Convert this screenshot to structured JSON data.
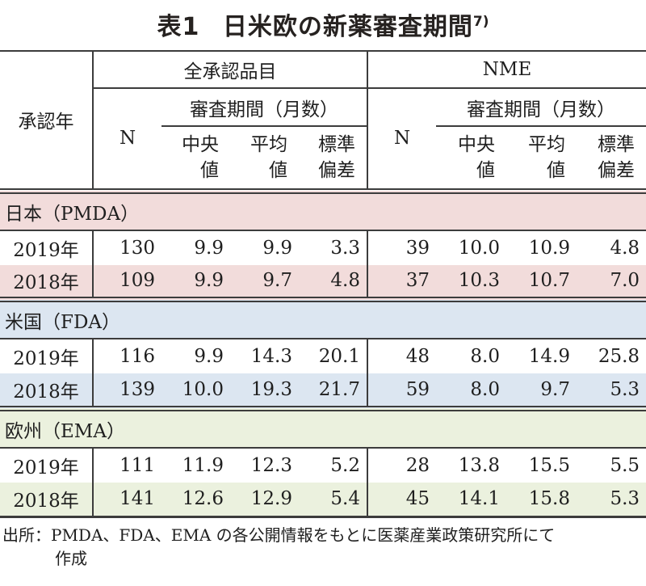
{
  "title": {
    "label": "表1",
    "text": "日米欧の新薬審査期間",
    "superscript": "7)"
  },
  "table": {
    "header": {
      "approval_year": "承認年",
      "group_all": "全承認品目",
      "group_nme": "NME",
      "n": "N",
      "review_period": "審査期間（月数）",
      "median_line1": "中央",
      "median_line2": "値",
      "mean_line1": "平均",
      "mean_line2": "値",
      "sd_line1": "標準",
      "sd_line2": "偏差"
    },
    "sections": [
      {
        "name": "日本（PMDA）",
        "color": "#f2dcdb",
        "rows": [
          {
            "year": "2019年",
            "all": {
              "n": "130",
              "median": "9.9",
              "mean": "9.9",
              "sd": "3.3"
            },
            "nme": {
              "n": "39",
              "median": "10.0",
              "mean": "10.9",
              "sd": "4.8"
            }
          },
          {
            "year": "2018年",
            "all": {
              "n": "109",
              "median": "9.9",
              "mean": "9.7",
              "sd": "4.8"
            },
            "nme": {
              "n": "37",
              "median": "10.3",
              "mean": "10.7",
              "sd": "7.0"
            }
          }
        ]
      },
      {
        "name": "米国（FDA）",
        "color": "#dce6f1",
        "rows": [
          {
            "year": "2019年",
            "all": {
              "n": "116",
              "median": "9.9",
              "mean": "14.3",
              "sd": "20.1"
            },
            "nme": {
              "n": "48",
              "median": "8.0",
              "mean": "14.9",
              "sd": "25.8"
            }
          },
          {
            "year": "2018年",
            "all": {
              "n": "139",
              "median": "10.0",
              "mean": "19.3",
              "sd": "21.7"
            },
            "nme": {
              "n": "59",
              "median": "8.0",
              "mean": "9.7",
              "sd": "5.3"
            }
          }
        ]
      },
      {
        "name": "欧州（EMA）",
        "color": "#ebf1de",
        "rows": [
          {
            "year": "2019年",
            "all": {
              "n": "111",
              "median": "11.9",
              "mean": "12.3",
              "sd": "5.2"
            },
            "nme": {
              "n": "28",
              "median": "13.8",
              "mean": "15.5",
              "sd": "5.5"
            }
          },
          {
            "year": "2018年",
            "all": {
              "n": "141",
              "median": "12.6",
              "mean": "12.9",
              "sd": "5.4"
            },
            "nme": {
              "n": "45",
              "median": "14.1",
              "mean": "15.8",
              "sd": "5.3"
            }
          }
        ]
      }
    ]
  },
  "source_note": {
    "prefix": "出所：",
    "line1": "PMDA、FDA、EMA の各公開情報をもとに医薬産業政策研究所にて",
    "line2": "作成"
  }
}
